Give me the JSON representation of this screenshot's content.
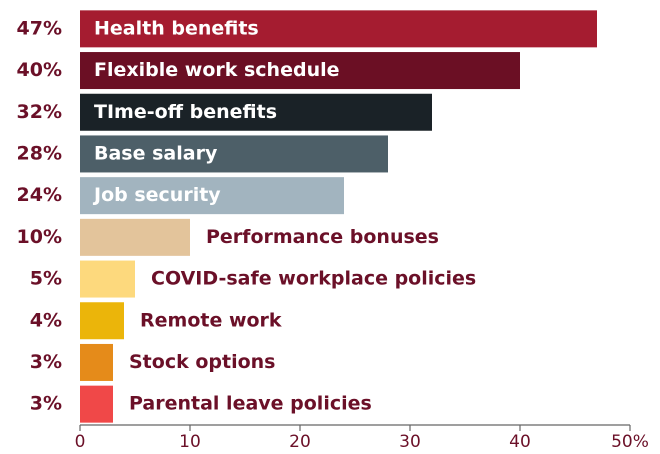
{
  "chart_data": {
    "type": "barh",
    "categories": [
      "Health benefits",
      "Flexible work schedule",
      "TIme-off benefits",
      "Base salary",
      "Job security",
      "Performance bonuses",
      "COVID-safe workplace policies",
      "Remote work",
      "Stock options",
      "Parental leave policies"
    ],
    "values": [
      47,
      40,
      32,
      28,
      24,
      10,
      5,
      4,
      3,
      3
    ],
    "value_labels": [
      "47%",
      "40%",
      "32%",
      "28%",
      "24%",
      "10%",
      "5%",
      "4%",
      "3%",
      "3%"
    ],
    "colors": [
      "#a51c30",
      "#6b0f24",
      "#1a2227",
      "#4d5f68",
      "#a2b4bf",
      "#e3c49b",
      "#fdd97d",
      "#ebb50a",
      "#e58b1a",
      "#f04848"
    ],
    "xlim": [
      0,
      50
    ],
    "xticks": [
      0,
      10,
      20,
      30,
      40,
      {
        "value": 50,
        "label": "50%"
      }
    ]
  }
}
